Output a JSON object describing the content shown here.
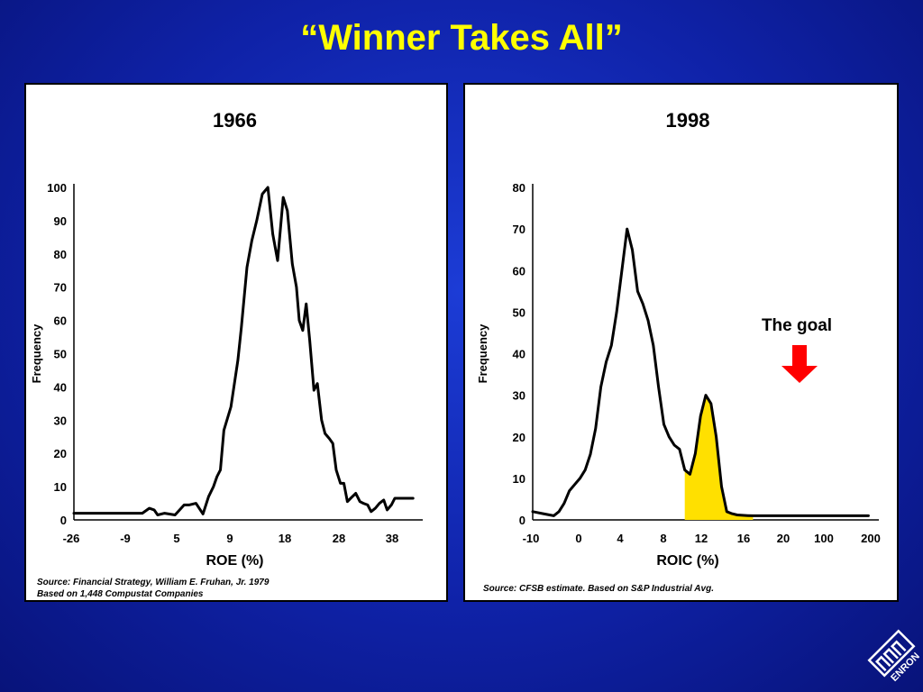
{
  "slide": {
    "title": "“Winner Takes All”"
  },
  "left": {
    "source_lines": [
      "Source:  Financial Strategy, William E. Fruhan, Jr. 1979",
      "Based on 1,448 Compustat Companies"
    ]
  },
  "right": {
    "source_lines": [
      "Source: CFSB estimate. Based on S&P Industrial Avg."
    ],
    "annotation": "The goal"
  },
  "colors": {
    "background": "#1231c4",
    "title": "#ffff00",
    "arrow": "#ff0000",
    "highlight": "#ffe000",
    "line": "#000000"
  },
  "logo": {
    "icon": "enron-logo",
    "text": "ENRON"
  },
  "chart_data": [
    {
      "type": "line",
      "title": "1966",
      "xlabel": "ROE (%)",
      "ylabel": "Frequency",
      "ylim": [
        0,
        100
      ],
      "yticks": [
        0,
        10,
        20,
        30,
        40,
        50,
        60,
        70,
        80,
        90,
        100
      ],
      "xticks": [
        "-26",
        "-9",
        "5",
        "9",
        "18",
        "28",
        "38"
      ],
      "xlim": [
        0,
        50
      ],
      "grid": false,
      "series": [
        {
          "x": [
            0,
            6,
            9.8,
            10.8,
            11.5,
            12,
            13,
            14.5,
            15.8,
            16.5,
            17.5,
            18.5,
            19.3,
            20,
            20.5,
            21,
            21.5,
            22.5,
            23.5,
            24,
            24.8,
            25.5,
            26.2,
            27,
            27.8,
            28.5,
            29.2,
            30,
            30.6,
            31.3,
            31.9,
            32.3,
            32.8,
            33.3,
            33.8,
            34.4,
            34.9,
            35.5,
            36,
            36.6,
            37.1,
            37.6,
            38.2,
            38.7,
            39.2,
            39.8,
            40.4,
            41,
            41.5,
            42.1,
            42.6,
            43.2,
            43.8,
            44.4,
            44.9,
            45.5,
            46,
            46.6,
            47.1,
            47.6,
            48.1,
            48.6
          ],
          "y": [
            2,
            2,
            2,
            3.5,
            3,
            1.5,
            2,
            1.5,
            4.5,
            4.5,
            5,
            1.8,
            7,
            10,
            13,
            15,
            27,
            34,
            48,
            58,
            76,
            84,
            90,
            98,
            100,
            86,
            78,
            97,
            93,
            77,
            70,
            60,
            57,
            65,
            54,
            39,
            41,
            30,
            26,
            24.5,
            23,
            15,
            11,
            11,
            5.5,
            6.8,
            8,
            5.5,
            5,
            4.5,
            2.5,
            3.5,
            5,
            6,
            3,
            4.5,
            6.5,
            6.5,
            6.5,
            6.5,
            6.5,
            6.5
          ]
        }
      ]
    },
    {
      "type": "area",
      "title": "1998",
      "xlabel": "ROIC (%)",
      "ylabel": "Frequency",
      "ylim": [
        0,
        80
      ],
      "yticks": [
        0,
        10,
        20,
        30,
        40,
        50,
        60,
        70,
        80
      ],
      "xticks": [
        "-10",
        "0",
        "4",
        "8",
        "12",
        "16",
        "20",
        "100",
        "200"
      ],
      "xlim": [
        -2,
        31
      ],
      "grid": false,
      "series": [
        {
          "x": [
            -2,
            -1,
            0,
            0.5,
            1,
            1.5,
            2,
            2.5,
            3,
            3.5,
            4,
            4.5,
            5,
            5.5,
            6,
            6.5,
            7,
            7.5,
            8,
            8.5,
            9,
            9.5,
            10,
            10.5,
            11,
            11.5,
            12,
            12.5,
            13,
            13.5,
            14,
            14.5,
            15,
            15.5,
            16,
            16.5,
            17,
            17.5,
            18,
            18.5,
            19,
            19.5,
            20,
            20.5,
            21,
            21.5,
            22,
            22.5,
            23,
            23.5,
            24,
            25,
            26,
            27,
            28,
            29,
            30
          ],
          "y": [
            2,
            1.5,
            1,
            2,
            4,
            7,
            8.5,
            10,
            12,
            15.8,
            22,
            32,
            38,
            42,
            50,
            60,
            70,
            65,
            55,
            52,
            48,
            42,
            32,
            23,
            20,
            18,
            17,
            12,
            11,
            16,
            25,
            30,
            28,
            20,
            8,
            2,
            1.5,
            1.2,
            1.1,
            1.05,
            1,
            1,
            1,
            1,
            1,
            1,
            1,
            1,
            1,
            1,
            1,
            1,
            1,
            1,
            1,
            1,
            1
          ]
        }
      ],
      "highlight": {
        "x_from": 12.5,
        "x_to": 19,
        "label": "The goal"
      }
    }
  ]
}
